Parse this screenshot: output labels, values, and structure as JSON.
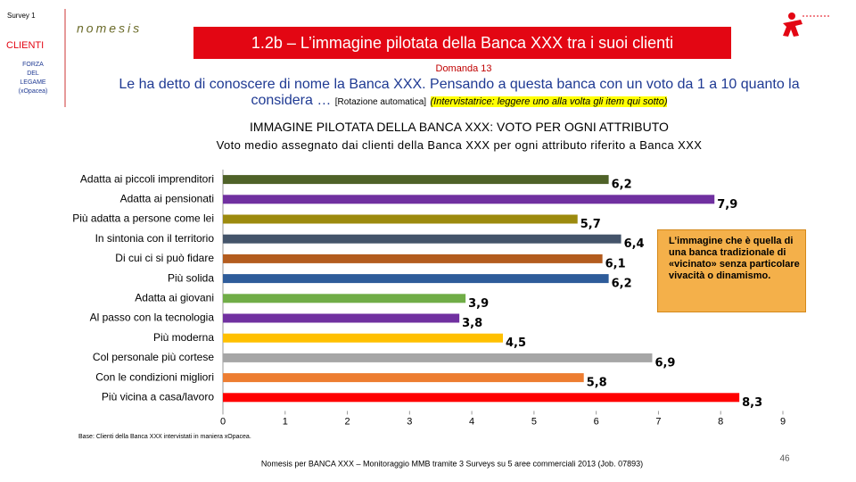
{
  "survey": "Survey 1",
  "logo": "nomesis",
  "section": "CLIENTI",
  "sidebar": [
    "FORZA",
    "DEL",
    "LEGAME",
    "(xOpacea)"
  ],
  "slide_title": "1.2b – L’immagine pilotata della Banca XXX tra i suoi clienti",
  "question_number": "Domanda 13",
  "question": "Le ha detto di conoscere di nome la Banca XXX. Pensando a questa banca con un voto da 1 a 10 quanto la considera …",
  "question_note": "[Rotazione automatica]",
  "interviewer_note": "(Intervistatrice: leggere uno alla volta gli item qui sotto)",
  "base": "Base: Clienti della Banca XXX intervistati in maniera xOpacea.",
  "footer": "Nomesis per BANCA XXX – Monitoraggio MMB tramite 3 Surveys su 5 aree commerciali 2013 (Job. 07893)",
  "page_number": "46",
  "chart_data": {
    "type": "hbar",
    "title": "IMMAGINE PILOTATA DELLA BANCA XXX: VOTO PER OGNI ATTRIBUTO",
    "subtitle": "Voto medio assegnato dai clienti della Banca XXX per ogni attributo riferito a Banca XXX",
    "categories": [
      "Adatta ai piccoli imprenditori",
      "Adatta ai pensionati",
      "Più adatta a persone come lei",
      "In sintonia con il territorio",
      "Di cui ci si può fidare",
      "Più solida",
      "Adatta ai giovani",
      "Al passo con la tecnologia",
      "Più moderna",
      "Col personale più cortese",
      "Con le condizioni migliori",
      "Più vicina a casa/lavoro"
    ],
    "values": [
      6.2,
      7.9,
      5.7,
      6.4,
      6.1,
      6.2,
      3.9,
      3.8,
      4.5,
      6.9,
      5.8,
      8.3
    ],
    "value_labels": [
      "6,2",
      "7,9",
      "5,7",
      "6,4",
      "6,1",
      "6,2",
      "3,9",
      "3,8",
      "4,5",
      "6,9",
      "5,8",
      "8,3"
    ],
    "colors": [
      "#4f6228",
      "#7030a0",
      "#9c8a0e",
      "#44546a",
      "#b35c1e",
      "#2e5c9a",
      "#70ad47",
      "#7030a0",
      "#ffc000",
      "#a6a6a6",
      "#ed7d31",
      "#ff0000"
    ],
    "xlim": [
      0,
      9
    ],
    "xticks": [
      0,
      1,
      2,
      3,
      4,
      5,
      6,
      7,
      8,
      9
    ],
    "annotation": "L’immagine che è quella di una banca tradizionale di «vicinato» senza particolare vivacità o dinamismo."
  }
}
